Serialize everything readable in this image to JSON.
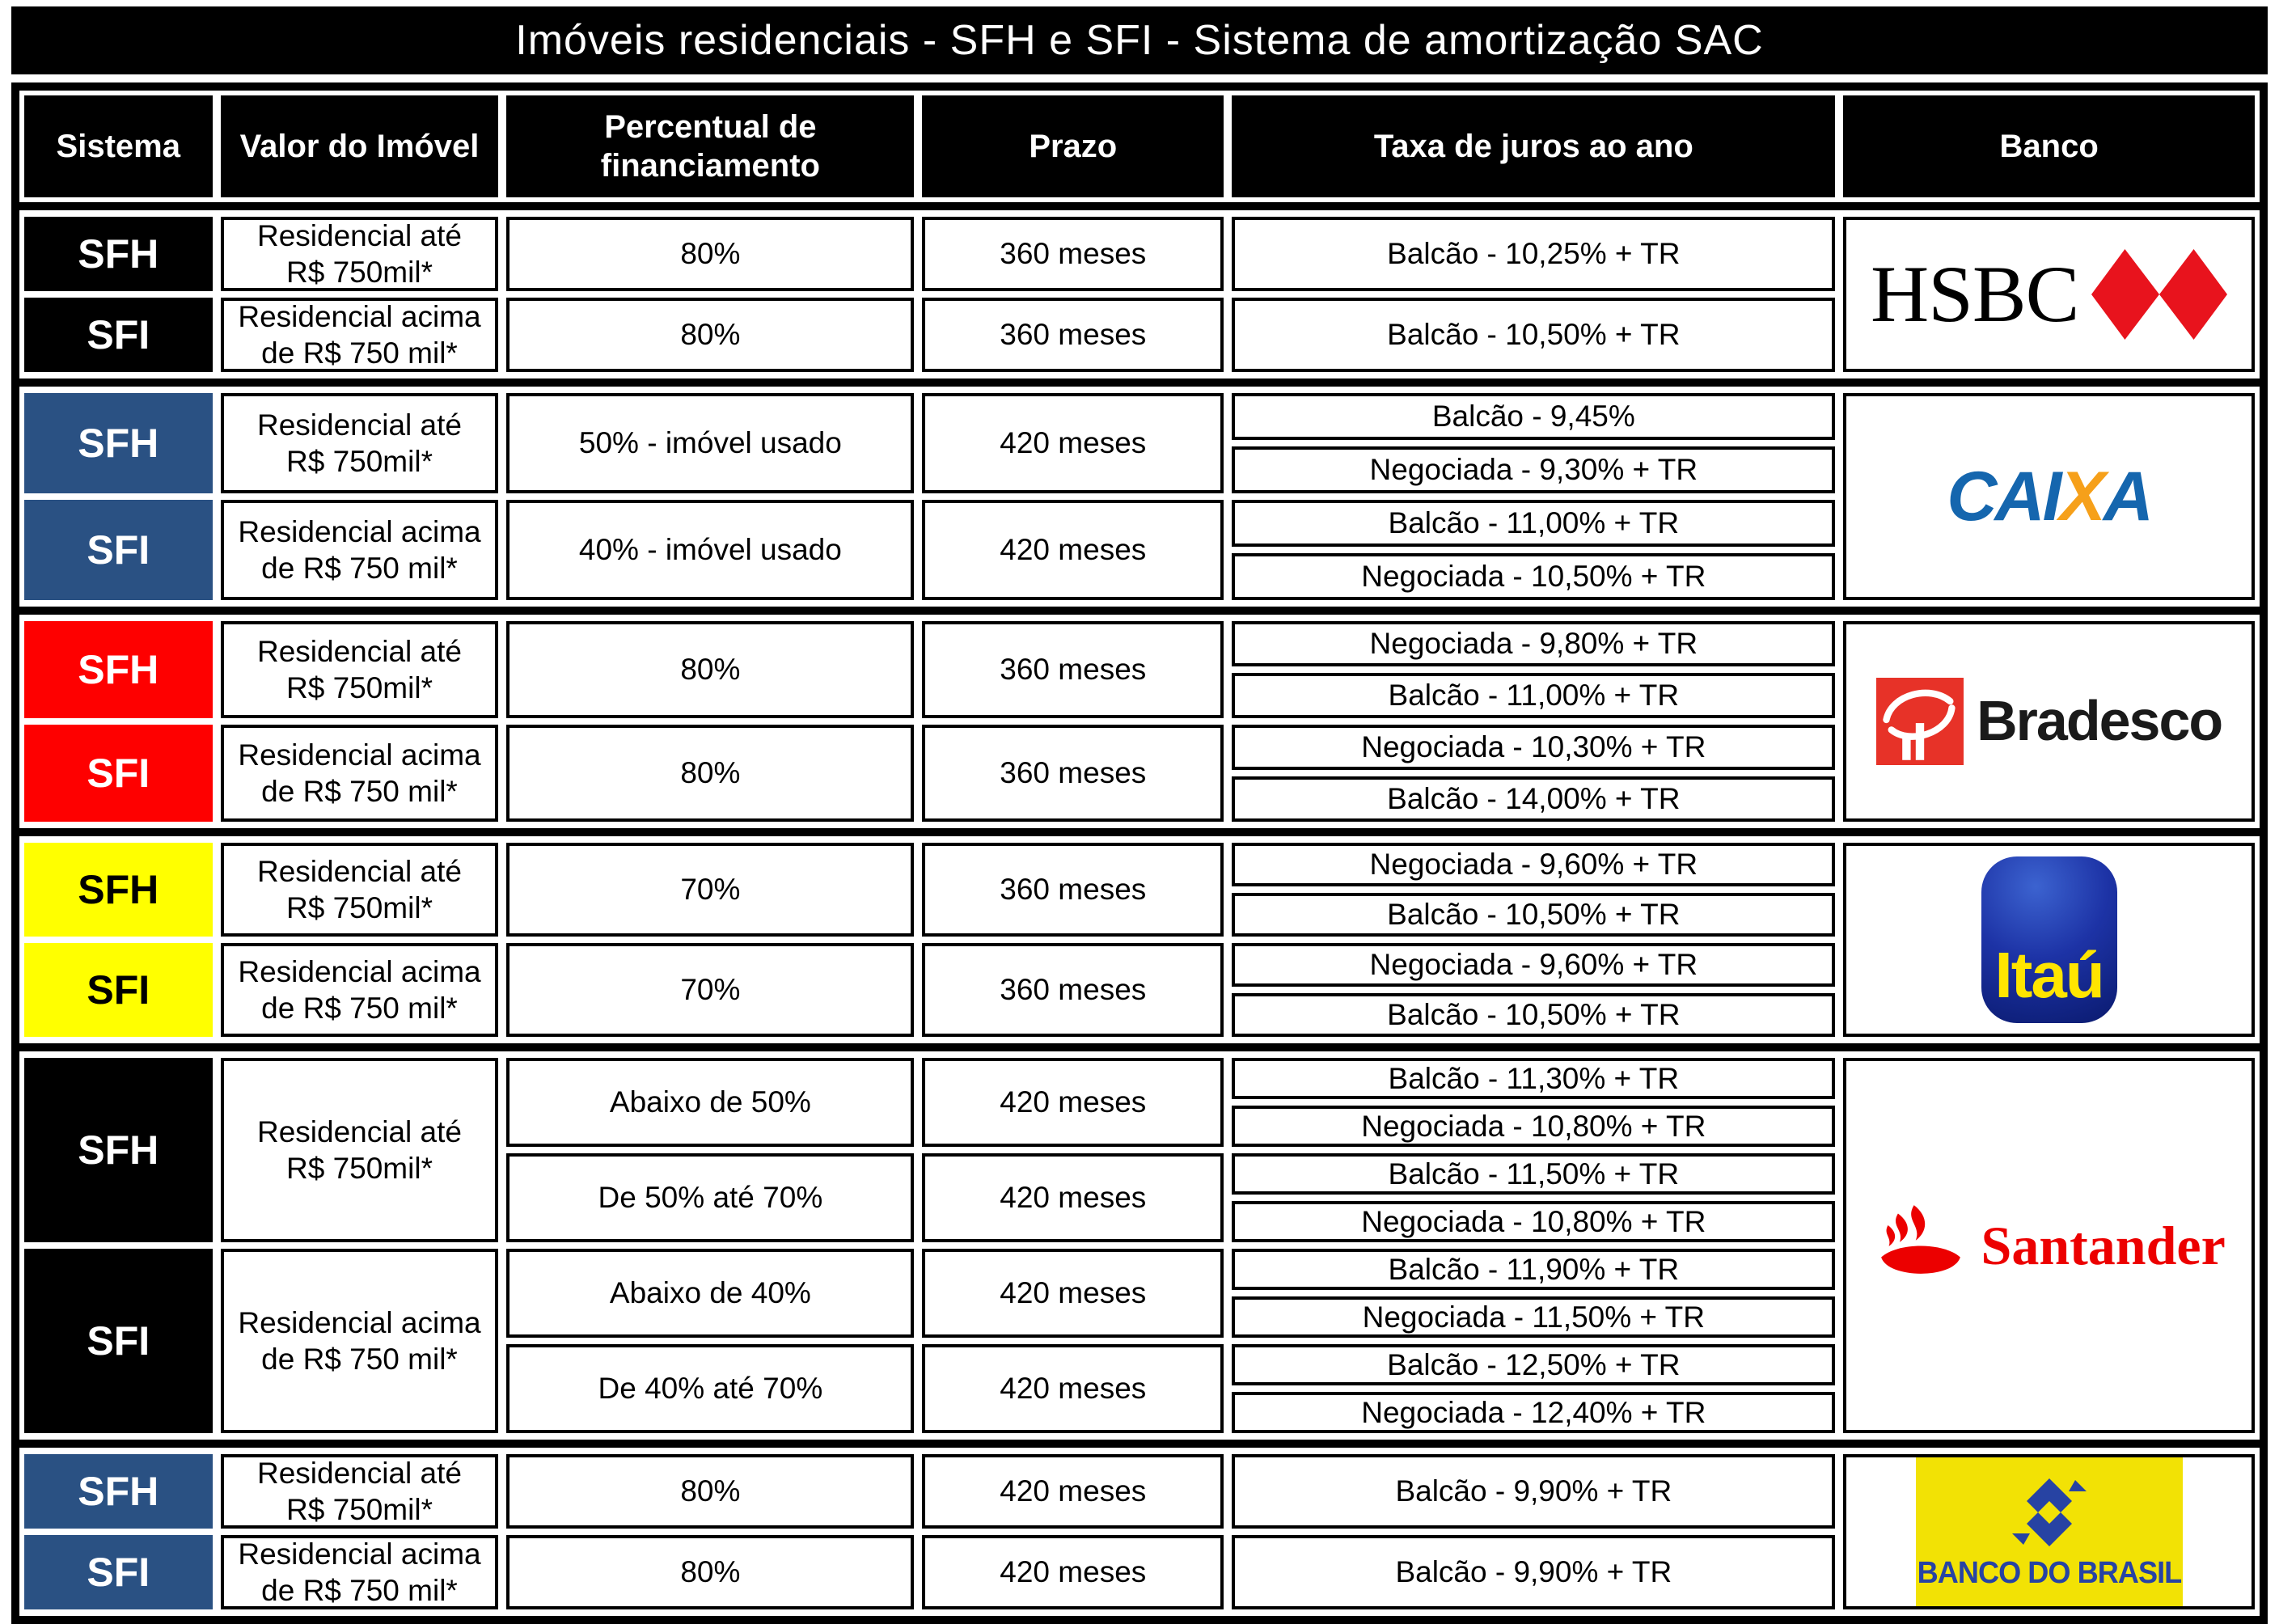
{
  "title": "Imóveis residenciais - SFH e SFI - Sistema de amortização SAC",
  "columns": [
    "Sistema",
    "Valor do Imóvel",
    "Percentual de\nfinanciamento",
    "Prazo",
    "Taxa de juros ao ano",
    "Banco"
  ],
  "colors": {
    "header_bg": "#000000",
    "blue_section": "#2a5183",
    "red_section": "#fe0000",
    "yellow_section": "#ffff00",
    "black_section": "#000000",
    "hsbc_red": "#e8131d",
    "caixa_blue": "#1566ae",
    "caixa_orange": "#f6a01a",
    "bradesco_red": "#e73228",
    "itau_blue": "#1d33a6",
    "itau_yellow": "#ffe500",
    "santander_red": "#ec0000",
    "bb_yellow": "#f2e205",
    "bb_blue": "#2743a3"
  },
  "banks": [
    {
      "id": "hsbc",
      "logo_text": "HSBC",
      "sistema_bg": "#000000",
      "sistema_fg": "#ffffff",
      "systems": [
        {
          "sistema": "SFH",
          "valor": "Residencial até\nR$ 750mil*",
          "subrows": [
            {
              "percentual": "80%",
              "prazo": "360 meses",
              "taxas": [
                "Balcão - 10,25% + TR"
              ]
            }
          ]
        },
        {
          "sistema": "SFI",
          "valor": "Residencial acima\nde R$ 750 mil*",
          "subrows": [
            {
              "percentual": "80%",
              "prazo": "360 meses",
              "taxas": [
                "Balcão - 10,50% + TR"
              ]
            }
          ]
        }
      ]
    },
    {
      "id": "caixa",
      "logo_text": "CAIXA",
      "sistema_bg": "#2a5183",
      "sistema_fg": "#ffffff",
      "systems": [
        {
          "sistema": "SFH",
          "valor": "Residencial até\nR$ 750mil*",
          "subrows": [
            {
              "percentual": "50% - imóvel usado",
              "prazo": "420 meses",
              "taxas": [
                "Balcão - 9,45%",
                "Negociada - 9,30% + TR"
              ]
            }
          ]
        },
        {
          "sistema": "SFI",
          "valor": "Residencial acima\nde R$ 750 mil*",
          "subrows": [
            {
              "percentual": "40% - imóvel usado",
              "prazo": "420 meses",
              "taxas": [
                "Balcão - 11,00% + TR",
                "Negociada - 10,50% + TR"
              ]
            }
          ]
        }
      ]
    },
    {
      "id": "bradesco",
      "logo_text": "Bradesco",
      "sistema_bg": "#fe0000",
      "sistema_fg": "#ffffff",
      "systems": [
        {
          "sistema": "SFH",
          "valor": "Residencial até\nR$ 750mil*",
          "subrows": [
            {
              "percentual": "80%",
              "prazo": "360 meses",
              "taxas": [
                "Negociada - 9,80% + TR",
                "Balcão - 11,00% + TR"
              ]
            }
          ]
        },
        {
          "sistema": "SFI",
          "valor": "Residencial acima\nde R$ 750 mil*",
          "subrows": [
            {
              "percentual": "80%",
              "prazo": "360 meses",
              "taxas": [
                "Negociada - 10,30% + TR",
                "Balcão - 14,00% + TR"
              ]
            }
          ]
        }
      ]
    },
    {
      "id": "itau",
      "logo_text": "Itaú",
      "sistema_bg": "#ffff00",
      "sistema_fg": "#000000",
      "systems": [
        {
          "sistema": "SFH",
          "valor": "Residencial até\nR$ 750mil*",
          "subrows": [
            {
              "percentual": "70%",
              "prazo": "360 meses",
              "taxas": [
                "Negociada - 9,60% + TR",
                "Balcão - 10,50% + TR"
              ]
            }
          ]
        },
        {
          "sistema": "SFI",
          "valor": "Residencial acima\nde R$ 750 mil*",
          "subrows": [
            {
              "percentual": "70%",
              "prazo": "360 meses",
              "taxas": [
                "Negociada - 9,60% + TR",
                "Balcão - 10,50% + TR"
              ]
            }
          ]
        }
      ]
    },
    {
      "id": "santander",
      "logo_text": "Santander",
      "sistema_bg": "#000000",
      "sistema_fg": "#ffffff",
      "systems": [
        {
          "sistema": "SFH",
          "valor": "Residencial até\nR$ 750mil*",
          "subrows": [
            {
              "percentual": "Abaixo de 50%",
              "prazo": "420 meses",
              "taxas": [
                "Balcão - 11,30% + TR",
                "Negociada - 10,80% + TR"
              ]
            },
            {
              "percentual": "De 50% até 70%",
              "prazo": "420 meses",
              "taxas": [
                "Balcão - 11,50% + TR",
                "Negociada - 10,80% + TR"
              ]
            }
          ]
        },
        {
          "sistema": "SFI",
          "valor": "Residencial acima\nde R$ 750 mil*",
          "subrows": [
            {
              "percentual": "Abaixo de 40%",
              "prazo": "420 meses",
              "taxas": [
                "Balcão - 11,90% + TR",
                "Negociada - 11,50% + TR"
              ]
            },
            {
              "percentual": "De 40% até 70%",
              "prazo": "420 meses",
              "taxas": [
                "Balcão - 12,50% + TR",
                "Negociada - 12,40% + TR"
              ]
            }
          ]
        }
      ]
    },
    {
      "id": "bancodobrasil",
      "logo_text": "BANCO DO BRASIL",
      "sistema_bg": "#2a5183",
      "sistema_fg": "#ffffff",
      "systems": [
        {
          "sistema": "SFH",
          "valor": "Residencial até\nR$ 750mil*",
          "subrows": [
            {
              "percentual": "80%",
              "prazo": "420 meses",
              "taxas": [
                "Balcão - 9,90% + TR"
              ]
            }
          ]
        },
        {
          "sistema": "SFI",
          "valor": "Residencial acima\nde R$ 750 mil*",
          "subrows": [
            {
              "percentual": "80%",
              "prazo": "420 meses",
              "taxas": [
                "Balcão - 9,90% + TR"
              ]
            }
          ]
        }
      ]
    }
  ]
}
